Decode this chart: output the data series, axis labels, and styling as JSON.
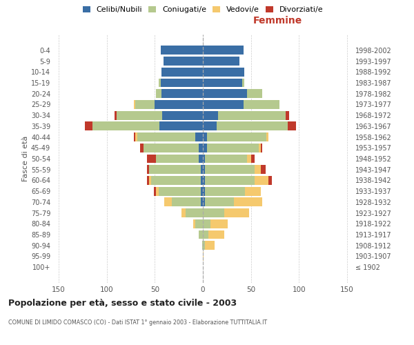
{
  "age_groups": [
    "100+",
    "95-99",
    "90-94",
    "85-89",
    "80-84",
    "75-79",
    "70-74",
    "65-69",
    "60-64",
    "55-59",
    "50-54",
    "45-49",
    "40-44",
    "35-39",
    "30-34",
    "25-29",
    "20-24",
    "15-19",
    "10-14",
    "5-9",
    "0-4"
  ],
  "birth_years": [
    "≤ 1902",
    "1903-1907",
    "1908-1912",
    "1913-1917",
    "1918-1922",
    "1923-1927",
    "1928-1932",
    "1933-1937",
    "1938-1942",
    "1943-1947",
    "1948-1952",
    "1953-1957",
    "1958-1962",
    "1963-1967",
    "1968-1972",
    "1973-1977",
    "1978-1982",
    "1983-1987",
    "1988-1992",
    "1993-1997",
    "1998-2002"
  ],
  "males": {
    "celibe": [
      0,
      0,
      0,
      0,
      0,
      0,
      2,
      2,
      2,
      2,
      4,
      4,
      8,
      45,
      42,
      50,
      43,
      44,
      43,
      41,
      44
    ],
    "coniugato": [
      0,
      0,
      1,
      4,
      8,
      18,
      30,
      44,
      52,
      54,
      45,
      58,
      60,
      70,
      48,
      20,
      6,
      2,
      0,
      0,
      0
    ],
    "vedovo": [
      0,
      0,
      0,
      0,
      2,
      4,
      8,
      3,
      2,
      0,
      0,
      0,
      2,
      0,
      0,
      2,
      0,
      0,
      0,
      0,
      0
    ],
    "divorziato": [
      0,
      0,
      0,
      0,
      0,
      0,
      0,
      2,
      2,
      2,
      9,
      3,
      2,
      8,
      2,
      0,
      0,
      0,
      0,
      0,
      0
    ]
  },
  "females": {
    "nubile": [
      0,
      0,
      0,
      0,
      0,
      0,
      2,
      2,
      2,
      2,
      2,
      4,
      4,
      14,
      16,
      42,
      46,
      41,
      43,
      38,
      42
    ],
    "coniugata": [
      0,
      0,
      2,
      6,
      8,
      22,
      30,
      42,
      52,
      52,
      44,
      54,
      62,
      74,
      70,
      38,
      16,
      2,
      0,
      0,
      0
    ],
    "vedova": [
      0,
      1,
      10,
      16,
      18,
      26,
      30,
      16,
      14,
      6,
      4,
      2,
      2,
      0,
      0,
      0,
      0,
      0,
      0,
      0,
      0
    ],
    "divorziata": [
      0,
      0,
      0,
      0,
      0,
      0,
      0,
      0,
      4,
      5,
      4,
      2,
      0,
      9,
      4,
      0,
      0,
      0,
      0,
      0,
      0
    ]
  },
  "colors": {
    "celibe": "#3a6ea5",
    "coniugato": "#b5c98e",
    "vedovo": "#f5c96e",
    "divorziato": "#c0392b"
  },
  "xlim": 155,
  "title": "Popolazione per età, sesso e stato civile - 2003",
  "subtitle": "COMUNE DI LIMIDO COMASCO (CO) - Dati ISTAT 1° gennaio 2003 - Elaborazione TUTTITALIA.IT",
  "ylabel_left": "Fasce di età",
  "xlabel_right": "Femmine",
  "legend_labels": [
    "Celibi/Nubili",
    "Coniugati/e",
    "Vedovi/e",
    "Divorziati/e"
  ],
  "background_color": "#ffffff",
  "grid_color": "#cccccc"
}
